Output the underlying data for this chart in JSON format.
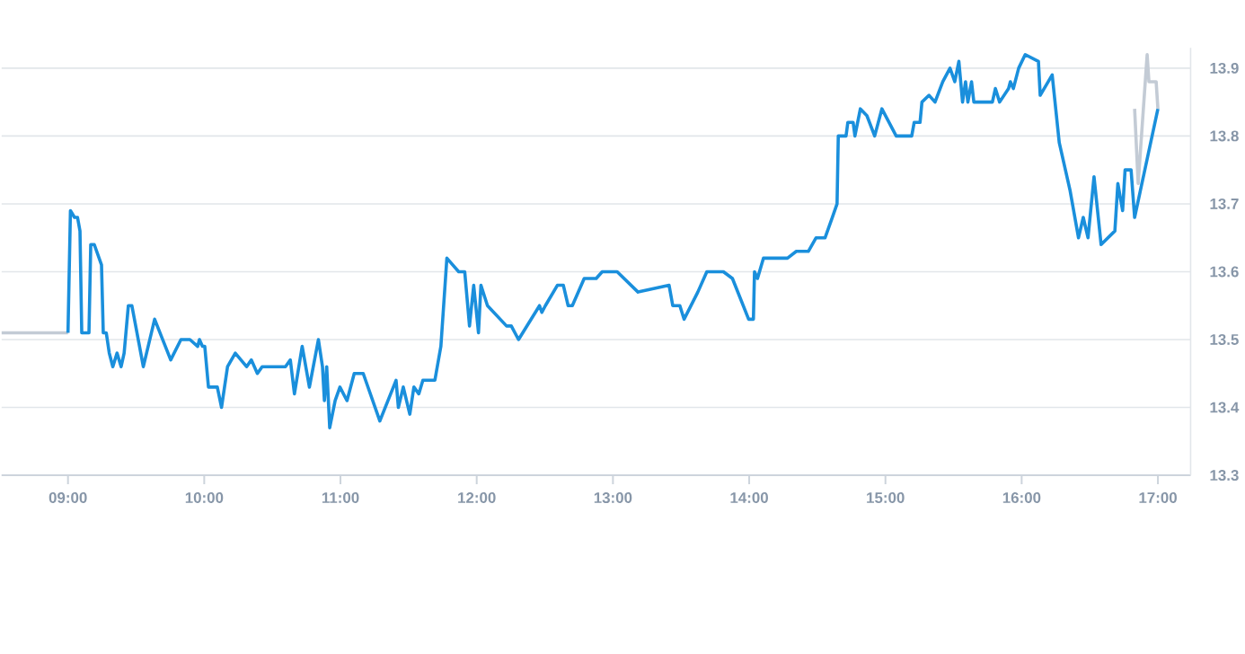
{
  "chart_data": {
    "type": "line",
    "grid": "y",
    "xlim": [
      8.513,
      17.24
    ],
    "ylim": [
      13.3,
      13.93
    ],
    "xticks": [
      {
        "value": 9,
        "label": "09:00"
      },
      {
        "value": 10,
        "label": "10:00"
      },
      {
        "value": 11,
        "label": "11:00"
      },
      {
        "value": 12,
        "label": "12:00"
      },
      {
        "value": 13,
        "label": "13:00"
      },
      {
        "value": 14,
        "label": "14:00"
      },
      {
        "value": 15,
        "label": "15:00"
      },
      {
        "value": 16,
        "label": "16:00"
      },
      {
        "value": 17,
        "label": "17:00"
      }
    ],
    "yticks": [
      13.3,
      13.4,
      13.5,
      13.6,
      13.7,
      13.8,
      13.9
    ],
    "series": [
      {
        "color": "#c3cbd5",
        "x": [
          8.513,
          9.0
        ],
        "values": [
          13.51,
          13.51
        ]
      },
      {
        "color": "#1a8fdc",
        "x": [
          9.0,
          9.018,
          9.048,
          9.07,
          9.088,
          9.101,
          9.154,
          9.167,
          9.193,
          9.246,
          9.259,
          9.281,
          9.303,
          9.329,
          9.36,
          9.39,
          9.412,
          9.443,
          9.469,
          9.553,
          9.636,
          9.754,
          9.829,
          9.895,
          9.952,
          9.965,
          9.987,
          10.004,
          10.031,
          10.096,
          10.127,
          10.149,
          10.171,
          10.228,
          10.311,
          10.346,
          10.39,
          10.425,
          10.596,
          10.632,
          10.662,
          10.719,
          10.772,
          10.838,
          10.868,
          10.882,
          10.899,
          10.921,
          10.961,
          10.996,
          11.048,
          11.101,
          11.167,
          11.289,
          11.408,
          11.425,
          11.461,
          11.509,
          11.539,
          11.575,
          11.605,
          11.693,
          11.737,
          11.781,
          11.868,
          11.912,
          11.947,
          11.978,
          12.013,
          12.031,
          12.079,
          12.219,
          12.254,
          12.307,
          12.461,
          12.478,
          12.504,
          12.592,
          12.636,
          12.671,
          12.702,
          12.789,
          12.877,
          12.921,
          13.031,
          13.184,
          13.412,
          13.439,
          13.491,
          13.522,
          13.623,
          13.689,
          13.811,
          13.877,
          13.996,
          14.031,
          14.039,
          14.061,
          14.105,
          14.281,
          14.346,
          14.434,
          14.491,
          14.557,
          14.61,
          14.645,
          14.654,
          14.711,
          14.724,
          14.763,
          14.776,
          14.816,
          14.864,
          14.921,
          14.974,
          15.079,
          15.193,
          15.211,
          15.254,
          15.268,
          15.32,
          15.364,
          15.421,
          15.474,
          15.509,
          15.539,
          15.566,
          15.588,
          15.605,
          15.632,
          15.649,
          15.785,
          15.807,
          15.838,
          15.904,
          15.917,
          15.939,
          15.978,
          16.026,
          16.123,
          16.136,
          16.224,
          16.276,
          16.355,
          16.417,
          16.452,
          16.487,
          16.531,
          16.583,
          16.684,
          16.706,
          16.741,
          16.759,
          16.803,
          16.829,
          17.0
        ],
        "values": [
          13.51,
          13.69,
          13.68,
          13.68,
          13.66,
          13.51,
          13.51,
          13.64,
          13.64,
          13.61,
          13.51,
          13.51,
          13.48,
          13.46,
          13.48,
          13.46,
          13.48,
          13.55,
          13.55,
          13.46,
          13.53,
          13.47,
          13.5,
          13.5,
          13.49,
          13.5,
          13.49,
          13.49,
          13.43,
          13.43,
          13.4,
          13.43,
          13.46,
          13.48,
          13.46,
          13.47,
          13.45,
          13.46,
          13.46,
          13.47,
          13.42,
          13.49,
          13.43,
          13.5,
          13.46,
          13.41,
          13.46,
          13.37,
          13.41,
          13.43,
          13.41,
          13.45,
          13.45,
          13.38,
          13.44,
          13.4,
          13.43,
          13.39,
          13.43,
          13.42,
          13.44,
          13.44,
          13.49,
          13.62,
          13.6,
          13.6,
          13.52,
          13.58,
          13.51,
          13.58,
          13.55,
          13.52,
          13.52,
          13.5,
          13.55,
          13.54,
          13.55,
          13.58,
          13.58,
          13.55,
          13.55,
          13.59,
          13.59,
          13.6,
          13.6,
          13.57,
          13.58,
          13.55,
          13.55,
          13.53,
          13.57,
          13.6,
          13.6,
          13.59,
          13.53,
          13.53,
          13.6,
          13.59,
          13.62,
          13.62,
          13.63,
          13.63,
          13.65,
          13.65,
          13.68,
          13.7,
          13.8,
          13.8,
          13.82,
          13.82,
          13.8,
          13.84,
          13.83,
          13.8,
          13.84,
          13.8,
          13.8,
          13.82,
          13.82,
          13.85,
          13.86,
          13.85,
          13.88,
          13.9,
          13.88,
          13.91,
          13.85,
          13.88,
          13.85,
          13.88,
          13.85,
          13.85,
          13.87,
          13.85,
          13.87,
          13.88,
          13.87,
          13.9,
          13.92,
          13.91,
          13.86,
          13.89,
          13.79,
          13.72,
          13.65,
          13.68,
          13.65,
          13.74,
          13.64,
          13.66,
          13.73,
          13.69,
          13.75,
          13.75,
          13.68,
          13.84
        ]
      },
      {
        "color": "#c3cbd5",
        "x": [
          16.829,
          16.855,
          16.921,
          16.934,
          16.987,
          17.0
        ],
        "values": [
          13.84,
          13.73,
          13.92,
          13.88,
          13.88,
          13.84
        ]
      }
    ]
  }
}
